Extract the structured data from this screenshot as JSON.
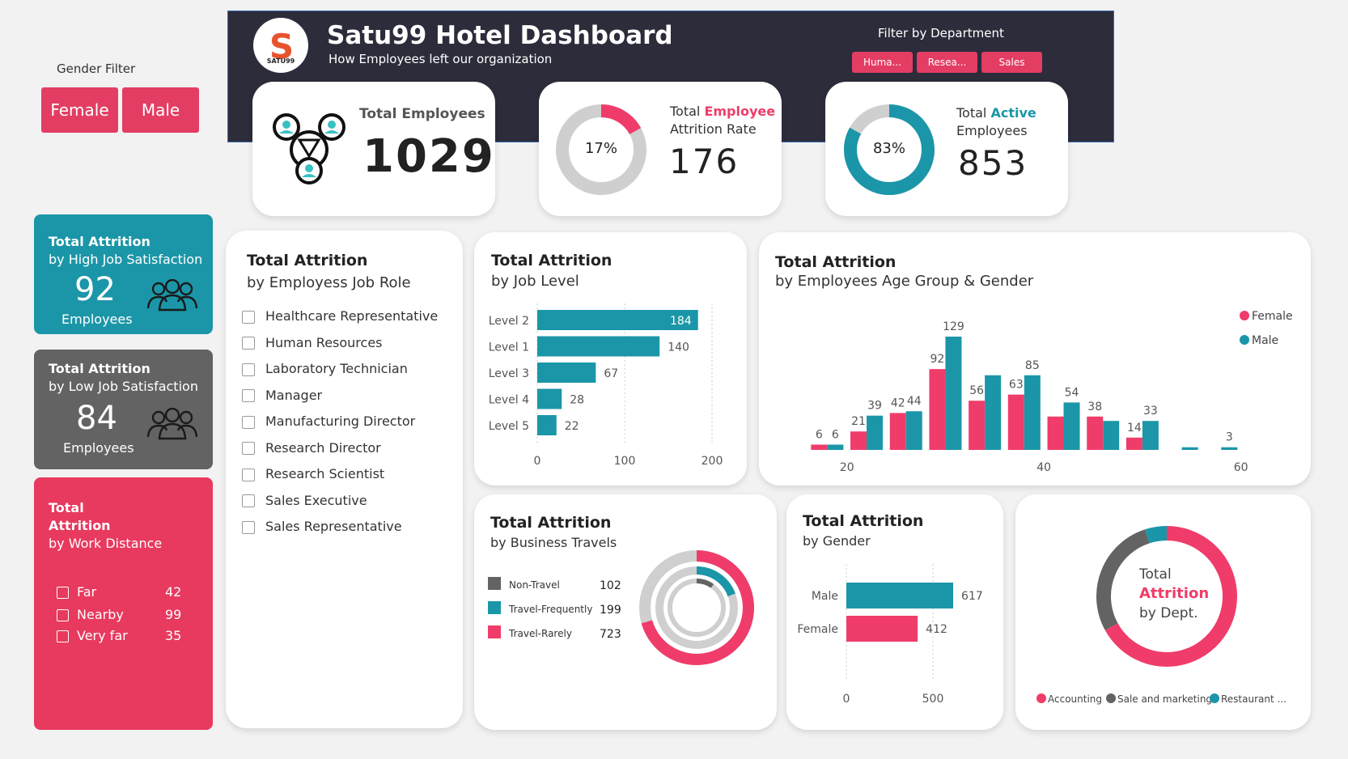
{
  "gender_filter": {
    "label": "Gender Filter",
    "options": [
      "Female",
      "Male"
    ]
  },
  "header": {
    "title": "Satu99 Hotel Dashboard",
    "subtitle": "How Employees left our organization",
    "logo_icon": "satu99-logo-icon",
    "department_filter_label": "Filter by Department",
    "department_buttons": [
      "Huma...",
      "Resea...",
      "Sales"
    ]
  },
  "kpi": {
    "total_employees": {
      "label": "Total Employees",
      "value": "1029",
      "icon": "network-people-icon"
    },
    "attrition_rate": {
      "label_prefix": "Total ",
      "label_highlight": "Employee",
      "label_rest": "Attrition Rate",
      "value": "176",
      "percent_label": "17%",
      "percent": 17
    },
    "active_employees": {
      "label_prefix": "Total ",
      "label_highlight": "Active",
      "label_rest": "Employees",
      "value": "853",
      "percent_label": "83%",
      "percent": 83
    }
  },
  "side_cards": {
    "high_satisfaction": {
      "title": "Total Attrition",
      "subtitle": "by High Job Satisfaction",
      "value": "92",
      "unit": "Employees",
      "icon": "group-icon"
    },
    "low_satisfaction": {
      "title": "Total Attrition",
      "subtitle": "by Low Job Satisfaction",
      "value": "84",
      "unit": "Employees",
      "icon": "group-icon"
    },
    "work_distance": {
      "title_line1": "Total",
      "title_line2": "Attrition",
      "subtitle": "by Work Distance",
      "items": [
        {
          "label": "Far",
          "value": "42"
        },
        {
          "label": "Nearby",
          "value": "99"
        },
        {
          "label": "Very far",
          "value": "35"
        }
      ]
    }
  },
  "job_role": {
    "title": "Total Attrition",
    "subtitle": "by Employess Job Role",
    "roles": [
      "Healthcare Representative",
      "Human Resources",
      "Laboratory Technician",
      "Manager",
      "Manufacturing Director",
      "Research Director",
      "Research Scientist",
      "Sales Executive",
      "Sales Representative"
    ]
  },
  "colors": {
    "teal": "#1b96a8",
    "pink": "#f03c6a",
    "gray": "#636363",
    "dark": "#2c2c3b",
    "light_gray": "#cfcfcf"
  },
  "chart_data": [
    {
      "id": "job_level",
      "type": "bar",
      "orientation": "horizontal",
      "title": "Total Attrition",
      "subtitle": "by Job Level",
      "categories": [
        "Level 2",
        "Level 1",
        "Level 3",
        "Level 4",
        "Level 5"
      ],
      "values": [
        184,
        140,
        67,
        28,
        22
      ],
      "xlim": [
        0,
        200
      ],
      "xticks": [
        "0",
        "100",
        "200"
      ]
    },
    {
      "id": "age_gender",
      "type": "bar",
      "title": "Total Attrition",
      "subtitle": "by Employees Age Group & Gender",
      "x": [
        18,
        22,
        26,
        30,
        34,
        38,
        42,
        46,
        50,
        54,
        58
      ],
      "xlim": [
        16,
        62
      ],
      "xticks": [
        "20",
        "40",
        "60"
      ],
      "ylim": [
        0,
        129
      ],
      "series": [
        {
          "name": "Female",
          "color": "#f03c6a",
          "values": [
            6,
            21,
            42,
            92,
            56,
            63,
            38,
            38,
            14,
            0,
            0
          ]
        },
        {
          "name": "Male",
          "color": "#1b96a8",
          "values": [
            6,
            39,
            44,
            129,
            85,
            85,
            54,
            33,
            33,
            3,
            3
          ]
        }
      ],
      "data_labels": [
        {
          "x": 18,
          "series": 0,
          "text": "6"
        },
        {
          "x": 18,
          "series": 1,
          "text": "6"
        },
        {
          "x": 22,
          "series": 0,
          "text": "21"
        },
        {
          "x": 22,
          "series": 1,
          "text": "39"
        },
        {
          "x": 26,
          "series": 0,
          "text": "42"
        },
        {
          "x": 26,
          "series": 1,
          "text": "44"
        },
        {
          "x": 30,
          "series": 0,
          "text": "92"
        },
        {
          "x": 30,
          "series": 1,
          "text": "129"
        },
        {
          "x": 34,
          "series": 0,
          "text": "56"
        },
        {
          "x": 38,
          "series": 0,
          "text": "63"
        },
        {
          "x": 38,
          "series": 1,
          "text": "85"
        },
        {
          "x": 42,
          "series": 1,
          "text": "54"
        },
        {
          "x": 46,
          "series": 0,
          "text": "38"
        },
        {
          "x": 50,
          "series": 0,
          "text": "14"
        },
        {
          "x": 50,
          "series": 1,
          "text": "33"
        },
        {
          "x": 58,
          "series": 1,
          "text": "3"
        }
      ],
      "legend": "top-right"
    },
    {
      "id": "business_travel",
      "type": "pie",
      "title": "Total Attrition",
      "subtitle": "by Business Travels",
      "categories": [
        "Non-Travel",
        "Travel-Frequently",
        "Travel-Rarely"
      ],
      "values": [
        102,
        199,
        723
      ],
      "value_labels": [
        "102",
        "199",
        "723"
      ],
      "colors": [
        "#636363",
        "#1b96a8",
        "#f03c6a"
      ]
    },
    {
      "id": "gender",
      "type": "bar",
      "orientation": "horizontal",
      "title": "Total Attrition",
      "subtitle": "by Gender",
      "categories": [
        "Male",
        "Female"
      ],
      "values": [
        617,
        412
      ],
      "colors": [
        "#1b96a8",
        "#f03c6a"
      ],
      "xlim": [
        0,
        650
      ],
      "xticks": [
        "0",
        "500"
      ]
    },
    {
      "id": "department",
      "type": "pie",
      "center_line1": "Total",
      "center_line2": "Attrition",
      "center_line3": "by Dept.",
      "categories": [
        "Accounting",
        "Sale and marketing",
        "Restaurant ..."
      ],
      "values": [
        67,
        28,
        5
      ],
      "colors": [
        "#f03c6a",
        "#636363",
        "#1b96a8"
      ],
      "legend": "bottom"
    }
  ]
}
